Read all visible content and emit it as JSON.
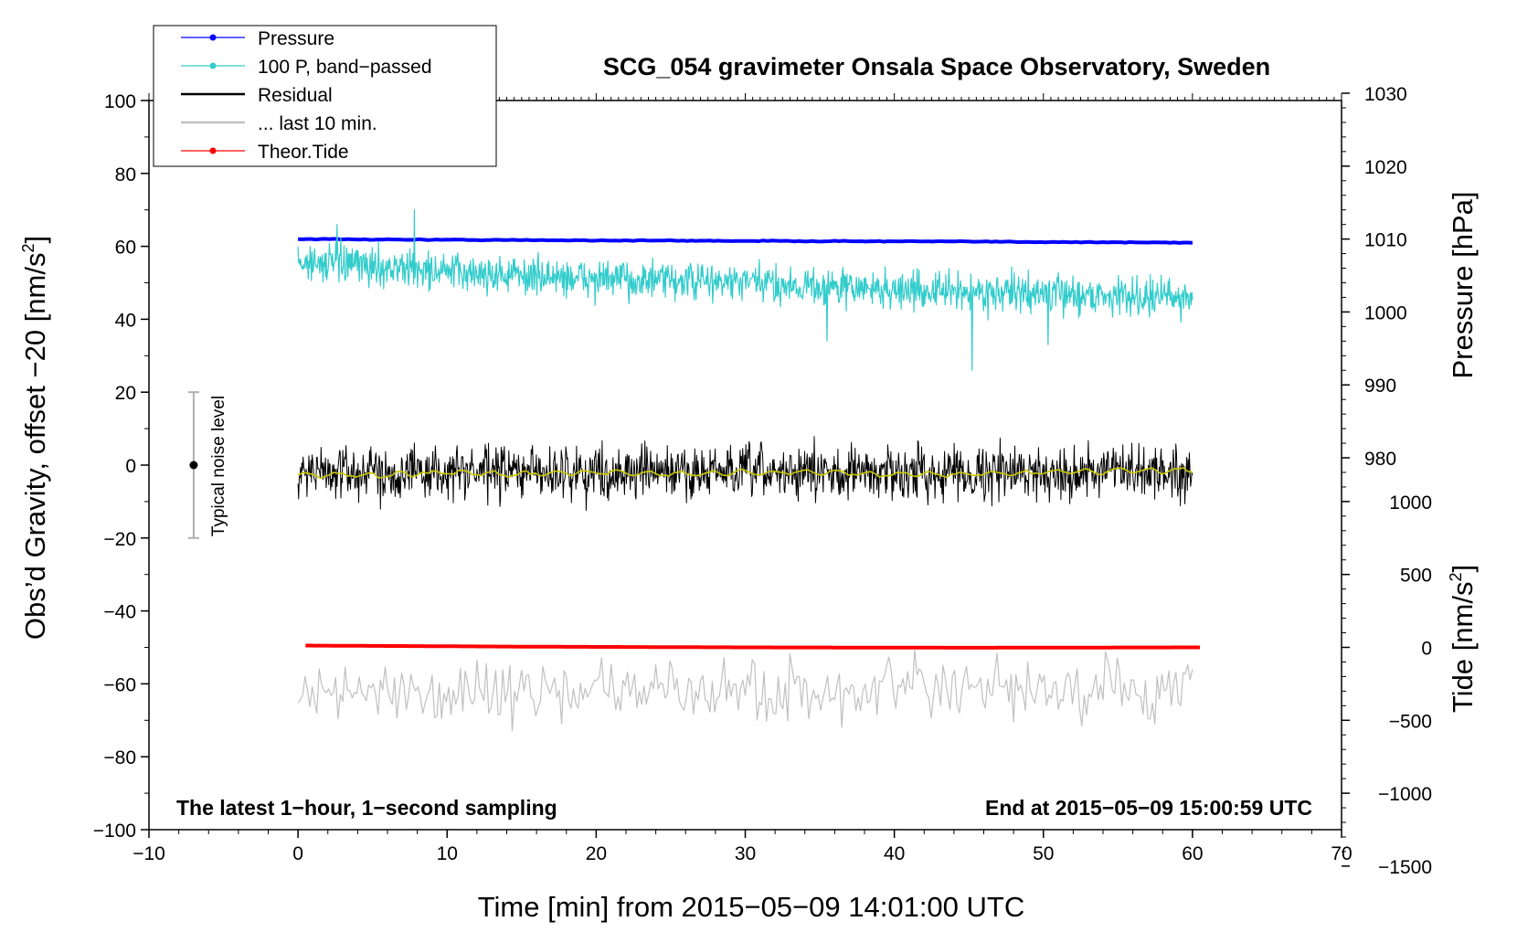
{
  "chart_data": {
    "type": "line",
    "title": "SCG_054 gravimeter Onsala Space Observatory, Sweden",
    "xlabel": "Time [min] from 2015−05−09 14:01:00 UTC",
    "ylabel_main": "Obs’d Gravity, offset −20 [nm/s",
    "ylabel_main_sup": "2",
    "ylabel_main_end": "]",
    "ylabel_pressure": "Pressure [hPa]",
    "ylabel_tide": "Tide [nm/s",
    "ylabel_tide_sup": "2",
    "ylabel_tide_end": "]",
    "xlim": [
      -10,
      70
    ],
    "ylim": [
      -100,
      100
    ],
    "x_ticks": [
      -10,
      0,
      10,
      20,
      30,
      40,
      50,
      60,
      70
    ],
    "x_tick_labels": [
      "−10",
      "0",
      "10",
      "20",
      "30",
      "40",
      "50",
      "60",
      "70"
    ],
    "y_ticks": [
      100,
      80,
      60,
      40,
      20,
      0,
      -20,
      -40,
      -60,
      -80,
      -100
    ],
    "y_tick_labels": [
      "100",
      "80",
      "60",
      "40",
      "20",
      "0",
      "−20",
      "−40",
      "−60",
      "−80",
      "−100"
    ],
    "pressure_axis": {
      "ticks": [
        1030,
        1020,
        1010,
        1000,
        990,
        980
      ],
      "tick_labels": [
        "1030",
        "1020",
        "1010",
        "1000",
        "990",
        "980"
      ],
      "scale": {
        "ref_value": 1010,
        "ref_y": 62,
        "units_per_hpa": 2
      }
    },
    "tide_axis": {
      "ticks": [
        1000,
        500,
        0,
        -500,
        -1000,
        -1500
      ],
      "tick_labels": [
        "1000",
        "500",
        "0",
        "−500",
        "−1000",
        "−1500"
      ],
      "scale": {
        "ref_value": 0,
        "ref_y": -50,
        "units_per_nms2": 0.04
      }
    },
    "legend": {
      "position": "top-left",
      "entries": [
        {
          "label": "Pressure",
          "color": "#0000ff",
          "marker": true
        },
        {
          "label": "100 P, band−passed",
          "color": "#33cccc",
          "marker": true
        },
        {
          "label": "Residual",
          "color": "#000000",
          "marker": false
        },
        {
          "label": "... last 10 min.",
          "color": "#c0c0c0",
          "marker": false
        },
        {
          "label": "Theor.Tide",
          "color": "#ff0000",
          "marker": true
        }
      ]
    },
    "annotations": {
      "bottom_left": "The latest 1−hour, 1−second sampling",
      "bottom_right": "End at 2015−05−09 15:00:59 UTC",
      "noise_bar_label": "Typical noise level"
    },
    "noise_bar": {
      "x": -7,
      "y_center": 0,
      "y_low": -20,
      "y_high": 20
    },
    "series": [
      {
        "name": "Pressure",
        "color": "#0000ff",
        "type": "trend",
        "x": [
          0,
          15,
          30,
          45,
          60
        ],
        "y": [
          62,
          61.7,
          61.5,
          61.3,
          61.0
        ]
      },
      {
        "name": "100 P, band-passed",
        "color": "#33cccc",
        "type": "noisy",
        "x_start": 0,
        "x_end": 60,
        "trend_x": [
          0,
          10,
          20,
          30,
          40,
          50,
          60
        ],
        "trend_y": [
          56,
          53,
          51,
          50,
          48,
          47,
          46
        ],
        "amplitude": 5,
        "spikes": [
          {
            "x": 7.8,
            "y": 70
          },
          {
            "x": 45.2,
            "y": 26
          },
          {
            "x": 2.6,
            "y": 66
          },
          {
            "x": 35.5,
            "y": 34
          },
          {
            "x": 50.3,
            "y": 33
          }
        ]
      },
      {
        "name": "Residual",
        "color": "#000000",
        "type": "noisy",
        "x_start": 0,
        "x_end": 60,
        "trend_x": [
          0,
          60
        ],
        "trend_y": [
          -2,
          -2
        ],
        "amplitude": 7
      },
      {
        "name": "Residual smoothed",
        "color": "#c8c800",
        "type": "trend",
        "x": [
          0,
          5,
          10,
          15,
          20,
          25,
          30,
          35,
          40,
          45,
          50,
          55,
          60
        ],
        "y": [
          -2.5,
          -3,
          -2,
          -2.5,
          -2,
          -2.5,
          -2,
          -2,
          -2.5,
          -2.5,
          -2,
          -1.5,
          -1.5
        ]
      },
      {
        "name": "... last 10 min.",
        "color": "#c0c0c0",
        "type": "noisy",
        "x_start": 0,
        "x_end": 60,
        "trend_x": [
          0,
          60
        ],
        "trend_y": [
          -62,
          -62
        ],
        "amplitude": 8,
        "points": 380
      },
      {
        "name": "Theor.Tide",
        "color": "#ff0000",
        "type": "trend",
        "x": [
          0.5,
          15,
          30,
          45,
          60.5
        ],
        "y": [
          -49.5,
          -49.8,
          -50.0,
          -50.1,
          -50.0
        ]
      }
    ]
  }
}
